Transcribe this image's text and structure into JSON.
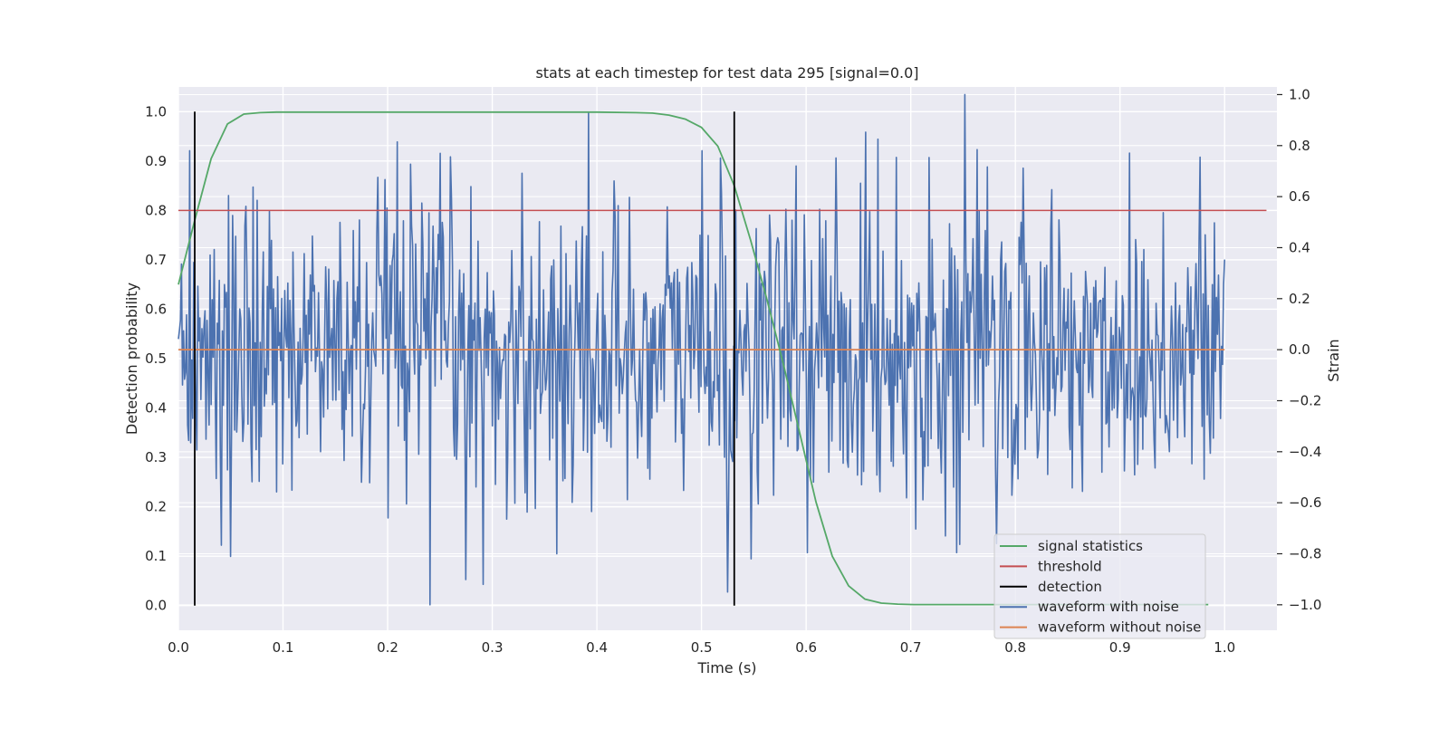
{
  "chart_data": {
    "type": "line",
    "title": "stats at each timestep for test data 295 [signal=0.0]",
    "xlabel": "Time (s)",
    "ylabel_left": "Detection probability",
    "ylabel_right": "Strain",
    "xlim": [
      0.0,
      1.05
    ],
    "ylim_left": [
      -0.05,
      1.05
    ],
    "ylim_right": [
      -1.1,
      1.03
    ],
    "x_ticks": [
      "0.0",
      "0.1",
      "0.2",
      "0.3",
      "0.4",
      "0.5",
      "0.6",
      "0.7",
      "0.8",
      "0.9",
      "1.0"
    ],
    "y_ticks_left": [
      "0.0",
      "0.1",
      "0.2",
      "0.3",
      "0.4",
      "0.5",
      "0.6",
      "0.7",
      "0.8",
      "0.9",
      "1.0"
    ],
    "y_ticks_right": [
      "−1.0",
      "−0.8",
      "−0.6",
      "−0.4",
      "−0.2",
      "0.0",
      "0.2",
      "0.4",
      "0.6",
      "0.8",
      "1.0"
    ],
    "grid": true,
    "legend_position": "lower-right",
    "series": [
      {
        "name": "signal statistics",
        "color": "#55a868",
        "axis": "left",
        "x": [
          0.0,
          0.0156,
          0.0313,
          0.0469,
          0.0625,
          0.0781,
          0.0938,
          0.1094,
          0.125,
          0.1563,
          0.2,
          0.25,
          0.3,
          0.35,
          0.4,
          0.4375,
          0.4531,
          0.4688,
          0.4844,
          0.5,
          0.5156,
          0.5313,
          0.5469,
          0.5625,
          0.5781,
          0.5938,
          0.6094,
          0.625,
          0.6406,
          0.6563,
          0.6719,
          0.6875,
          0.7031,
          0.75,
          0.8,
          0.85,
          0.9,
          0.95,
          0.9844
        ],
        "y": [
          0.65,
          0.78,
          0.905,
          0.975,
          0.995,
          0.998,
          0.999,
          0.999,
          0.999,
          0.999,
          0.999,
          0.999,
          0.999,
          0.999,
          0.999,
          0.998,
          0.997,
          0.993,
          0.985,
          0.968,
          0.93,
          0.85,
          0.74,
          0.62,
          0.49,
          0.35,
          0.21,
          0.1,
          0.04,
          0.013,
          0.005,
          0.003,
          0.002,
          0.002,
          0.002,
          0.002,
          0.002,
          0.002,
          0.002
        ]
      },
      {
        "name": "threshold",
        "color": "#c44e52",
        "axis": "left",
        "x": [
          0.0,
          1.04
        ],
        "y": [
          0.8,
          0.8
        ]
      },
      {
        "name": "detection",
        "color": "#000000",
        "axis": "left",
        "segments": [
          {
            "x": 0.0156,
            "y": [
              0.0,
              1.0
            ]
          },
          {
            "x": 0.5313,
            "y": [
              0.0,
              1.0
            ]
          }
        ]
      },
      {
        "name": "waveform with noise",
        "color": "#4c72b0",
        "axis": "right",
        "x_range": [
          0.0,
          1.0
        ],
        "n_points": 1024,
        "y_range": [
          -1.0,
          1.0
        ],
        "extremes": [
          {
            "x": 0.24,
            "y": -1.0
          },
          {
            "x": 0.752,
            "y": 1.0
          },
          {
            "x": 0.0105,
            "y": 0.78
          },
          {
            "x": 0.25,
            "y": 0.77
          },
          {
            "x": 0.5,
            "y": 0.78
          },
          {
            "x": 0.291,
            "y": -0.92
          },
          {
            "x": 0.362,
            "y": -0.8
          },
          {
            "x": 0.525,
            "y": -0.95
          },
          {
            "x": 0.547,
            "y": -0.82
          },
          {
            "x": 0.733,
            "y": -0.73
          },
          {
            "x": 0.782,
            "y": -0.76
          }
        ]
      },
      {
        "name": "waveform without noise",
        "color": "#dd8452",
        "axis": "right",
        "x": [
          0.0,
          1.0
        ],
        "y": [
          0.0,
          0.0
        ]
      }
    ]
  }
}
